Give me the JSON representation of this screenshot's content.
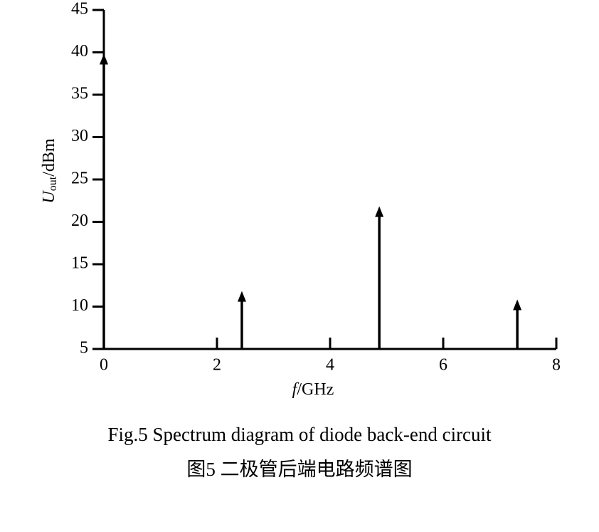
{
  "chart_data": {
    "type": "stem",
    "x": [
      0,
      2.44,
      4.87,
      7.31
    ],
    "values": [
      39.5,
      11.5,
      21.5,
      10.5
    ],
    "color": "#000000",
    "xlim": [
      0,
      8
    ],
    "xticks": [
      0,
      2,
      4,
      6,
      8
    ],
    "ylim": [
      5,
      45
    ],
    "yticks": [
      5,
      10,
      15,
      20,
      25,
      30,
      35,
      40,
      45
    ],
    "x_label": {
      "symbol": "f",
      "unit": "/GHz"
    },
    "y_label": {
      "symbol": "U",
      "subscript": "out",
      "unit": "/dBm"
    },
    "caption": [
      "Fig.5 Spectrum diagram of diode back-end circuit",
      "图5 二极管后端电路频谱图"
    ]
  }
}
